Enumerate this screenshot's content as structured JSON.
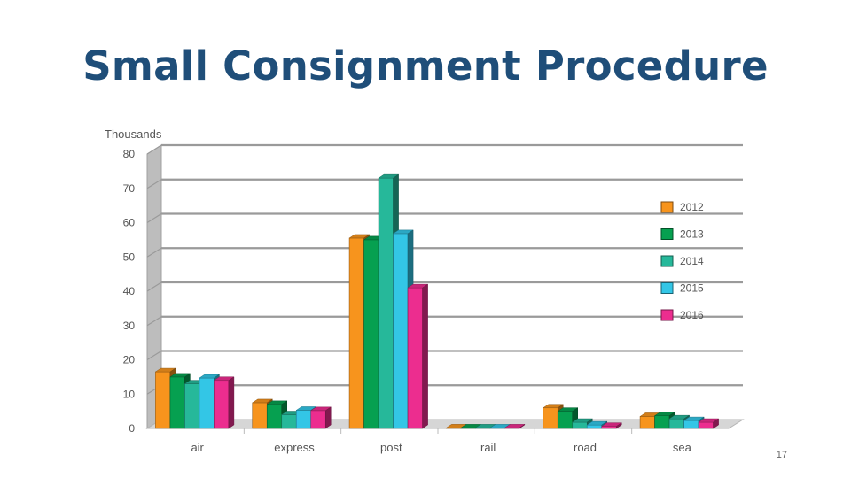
{
  "slide": {
    "title": "Small Consignment Procedure",
    "page_number": "17"
  },
  "chart_data": {
    "type": "bar",
    "style": "3d-clustered",
    "title": "",
    "ylabel": "Thousands",
    "xlabel": "",
    "ylim": [
      0,
      80
    ],
    "yticks": [
      0,
      10,
      20,
      30,
      40,
      50,
      60,
      70,
      80
    ],
    "grid": true,
    "legend_position": "right",
    "categories": [
      "air",
      "express",
      "post",
      "rail",
      "road",
      "sea"
    ],
    "series": [
      {
        "name": "2012",
        "color": "#f7941d",
        "values": [
          16.5,
          7.5,
          55.5,
          0.05,
          6.0,
          3.5
        ]
      },
      {
        "name": "2013",
        "color": "#06a050",
        "values": [
          15.0,
          7.0,
          55.0,
          0.05,
          5.0,
          3.7
        ]
      },
      {
        "name": "2014",
        "color": "#26b89a",
        "values": [
          13.0,
          4.0,
          73.0,
          0.05,
          1.8,
          2.8
        ]
      },
      {
        "name": "2015",
        "color": "#33c6e6",
        "values": [
          14.7,
          5.3,
          56.8,
          0.05,
          1.0,
          2.3
        ]
      },
      {
        "name": "2016",
        "color": "#ec2d8f",
        "values": [
          14.0,
          5.2,
          41.0,
          0.05,
          0.6,
          1.8
        ]
      }
    ]
  }
}
